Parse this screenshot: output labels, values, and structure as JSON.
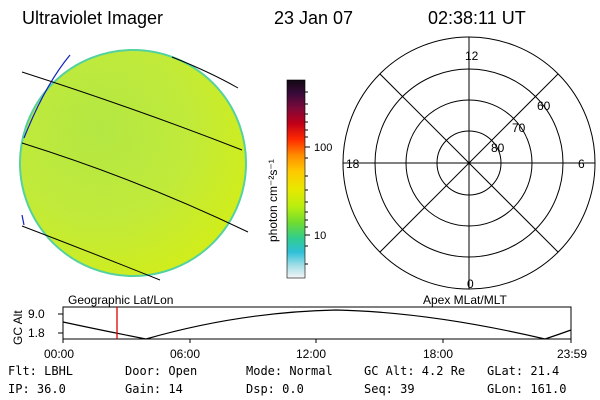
{
  "header": {
    "instrument": "Ultraviolet Imager",
    "date": "23 Jan 07",
    "time": "02:38:11 UT"
  },
  "colorbar": {
    "label": "photon cm⁻²s⁻¹",
    "ticks": [
      "100",
      "10"
    ],
    "colors": [
      "#1a0a1a",
      "#3a0a3a",
      "#6a0a3a",
      "#a00020",
      "#d00010",
      "#ff2000",
      "#ff8000",
      "#ffc000",
      "#e8e800",
      "#c0f000",
      "#80e030",
      "#40d080",
      "#40c0d0",
      "#a0e0e8",
      "#ffffff"
    ]
  },
  "polar_plot": {
    "mlt_labels": [
      "12",
      "18",
      "6",
      "0"
    ],
    "lat_labels": [
      "60",
      "70",
      "80"
    ]
  },
  "timeline": {
    "axis_title": "GC Alt",
    "y_ticks": [
      "9.0",
      "1.8"
    ],
    "left_label": "Geographic Lat/Lon",
    "right_label": "Apex MLat/MLT",
    "x_ticks": [
      "00:00",
      "06:00",
      "12:00",
      "18:00",
      "23:59"
    ]
  },
  "info": {
    "flt": "Flt: LBHL",
    "ip": "IP: 36.0",
    "door": "Door: Open",
    "gain": "Gain: 14",
    "mode": "Mode: Normal",
    "dsp": "Dsp:     0.0",
    "gc_alt": "GC Alt: 4.2 Re",
    "seq": "Seq: 39",
    "glat": "GLat:  21.4",
    "glon": "GLon: 161.0"
  }
}
